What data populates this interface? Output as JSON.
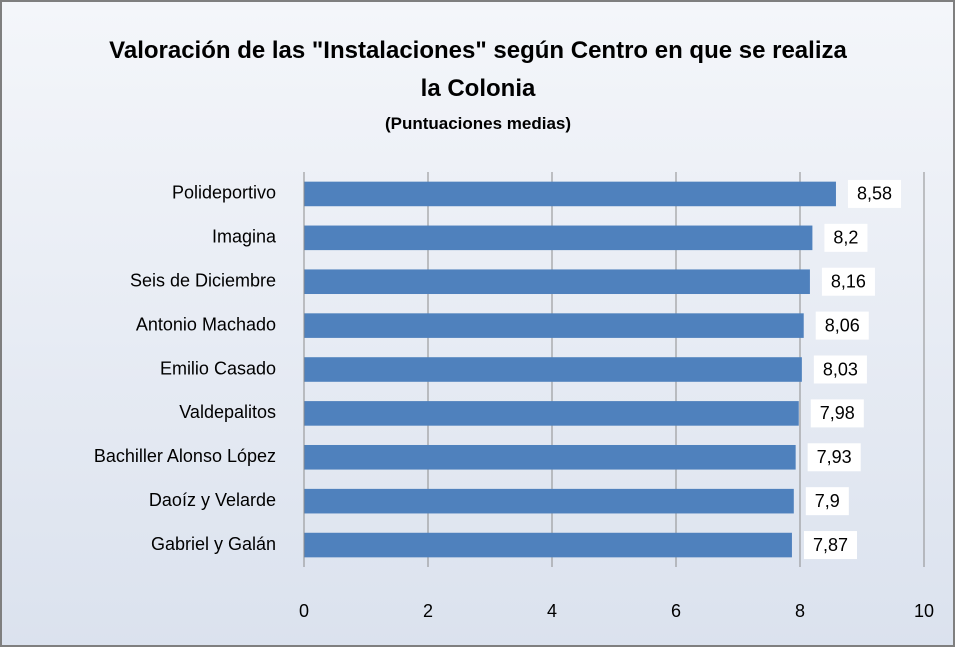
{
  "chart_data": {
    "type": "bar",
    "orientation": "horizontal",
    "title": "Valoración de las \"Instalaciones\" según Centro en que se realiza la Colonia",
    "subtitle": "(Puntuaciones medias)",
    "categories": [
      "Polideportivo",
      "Imagina",
      "Seis de Diciembre",
      "Antonio Machado",
      "Emilio Casado",
      "Valdepalitos",
      "Bachiller Alonso López",
      "Daoíz y Velarde",
      "Gabriel y Galán"
    ],
    "values": [
      8.58,
      8.2,
      8.16,
      8.06,
      8.03,
      7.98,
      7.93,
      7.9,
      7.87
    ],
    "value_labels": [
      "8,58",
      "8,2",
      "8,16",
      "8,06",
      "8,03",
      "7,98",
      "7,93",
      "7,9",
      "7,87"
    ],
    "color": "#4f81bd",
    "xlim": [
      0,
      10
    ],
    "xticks": [
      0,
      2,
      4,
      6,
      8,
      10
    ],
    "grid": true
  }
}
